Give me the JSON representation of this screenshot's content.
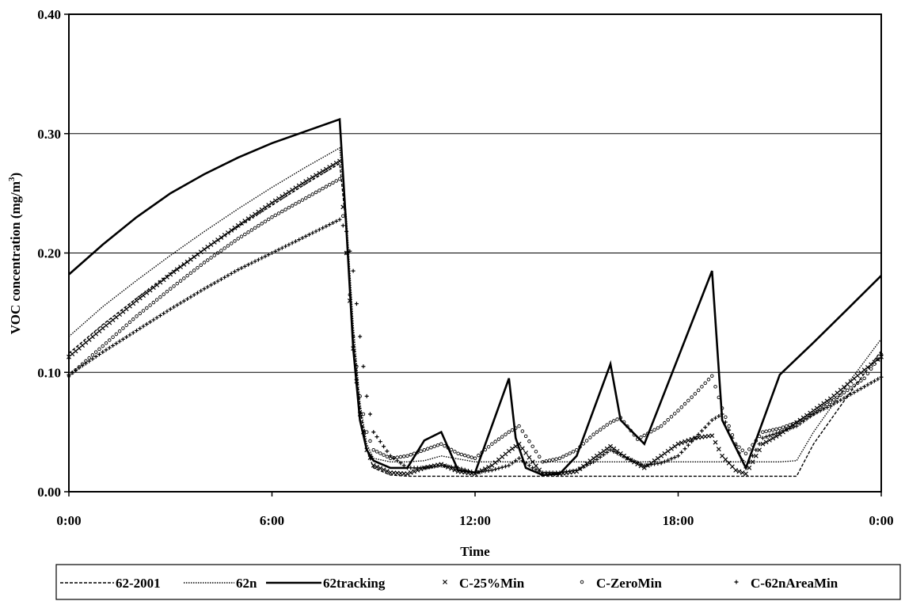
{
  "chart_data": {
    "type": "line",
    "title": "",
    "xlabel": "Time",
    "ylabel": "VOC concentration (mg/m",
    "ylabel_sup": "3",
    "ylabel_end": ")",
    "x_unit": "hours",
    "xlim": [
      0,
      24
    ],
    "ylim": [
      0,
      0.4
    ],
    "xticks": [
      {
        "value": 0,
        "label": "0:00"
      },
      {
        "value": 6,
        "label": "6:00"
      },
      {
        "value": 12,
        "label": "12:00"
      },
      {
        "value": 18,
        "label": "18:00"
      },
      {
        "value": 24,
        "label": "0:00"
      }
    ],
    "yticks": [
      {
        "value": 0,
        "label": "0.00"
      },
      {
        "value": 0.1,
        "label": "0.10"
      },
      {
        "value": 0.2,
        "label": "0.20"
      },
      {
        "value": 0.3,
        "label": "0.30"
      },
      {
        "value": 0.4,
        "label": "0.40"
      }
    ],
    "grid": "horizontal",
    "legend_position": "bottom",
    "series": [
      {
        "name": "62-2001",
        "style": "dash",
        "x": [
          0,
          1,
          2,
          3,
          4,
          5,
          6,
          7,
          8,
          8.2,
          8.4,
          8.6,
          8.8,
          9,
          9.5,
          10,
          11,
          12,
          13,
          14,
          15,
          16,
          17,
          18,
          19,
          20,
          21,
          21.5,
          22,
          23,
          24
        ],
        "y": [
          0.116,
          0.14,
          0.162,
          0.183,
          0.203,
          0.222,
          0.24,
          0.258,
          0.275,
          0.22,
          0.13,
          0.07,
          0.035,
          0.02,
          0.014,
          0.013,
          0.013,
          0.013,
          0.013,
          0.013,
          0.013,
          0.013,
          0.013,
          0.013,
          0.013,
          0.013,
          0.013,
          0.013,
          0.04,
          0.08,
          0.118
        ]
      },
      {
        "name": "62n",
        "style": "dot",
        "x": [
          0,
          1,
          2,
          3,
          4,
          5,
          6,
          7,
          8,
          8.2,
          8.4,
          8.6,
          8.8,
          9,
          9.5,
          10,
          10.5,
          11,
          12,
          13,
          14,
          15,
          16,
          17,
          18,
          19,
          20,
          21,
          21.5,
          22,
          23,
          24
        ],
        "y": [
          0.13,
          0.155,
          0.177,
          0.198,
          0.218,
          0.237,
          0.255,
          0.272,
          0.288,
          0.23,
          0.14,
          0.075,
          0.04,
          0.028,
          0.025,
          0.025,
          0.026,
          0.03,
          0.025,
          0.025,
          0.025,
          0.025,
          0.025,
          0.025,
          0.025,
          0.025,
          0.025,
          0.025,
          0.026,
          0.05,
          0.09,
          0.128
        ]
      },
      {
        "name": "62tracking",
        "style": "solid-thick",
        "x": [
          0,
          1,
          2,
          3,
          4,
          5,
          6,
          7,
          8,
          8.2,
          8.4,
          8.6,
          8.8,
          9,
          9.5,
          10,
          10.5,
          11,
          11.5,
          12,
          13,
          13.2,
          13.5,
          14,
          14.5,
          15,
          16,
          16.3,
          17,
          19,
          19.3,
          20,
          21,
          22,
          23,
          24
        ],
        "y": [
          0.182,
          0.207,
          0.23,
          0.25,
          0.266,
          0.28,
          0.292,
          0.302,
          0.312,
          0.22,
          0.12,
          0.06,
          0.035,
          0.026,
          0.02,
          0.02,
          0.043,
          0.05,
          0.018,
          0.016,
          0.095,
          0.045,
          0.02,
          0.014,
          0.015,
          0.03,
          0.107,
          0.06,
          0.04,
          0.185,
          0.06,
          0.02,
          0.098,
          0.125,
          0.153,
          0.181
        ]
      },
      {
        "name": "C-25%Min",
        "style": "marker-x",
        "x": [
          0,
          1,
          2,
          3,
          4,
          5,
          6,
          7,
          8,
          8.2,
          8.4,
          8.6,
          8.8,
          9,
          9.5,
          10,
          10.5,
          11,
          11.5,
          12,
          12.5,
          13,
          13.3,
          13.7,
          14,
          14.5,
          15,
          15.5,
          16,
          16.5,
          17,
          17.5,
          18,
          18.5,
          19,
          19.3,
          19.7,
          20,
          20.5,
          21,
          21.5,
          22,
          22.5,
          23,
          23.5,
          24
        ],
        "y": [
          0.113,
          0.137,
          0.16,
          0.182,
          0.203,
          0.223,
          0.242,
          0.26,
          0.277,
          0.2,
          0.12,
          0.065,
          0.035,
          0.022,
          0.016,
          0.015,
          0.02,
          0.023,
          0.017,
          0.015,
          0.022,
          0.034,
          0.04,
          0.025,
          0.015,
          0.015,
          0.017,
          0.028,
          0.038,
          0.028,
          0.02,
          0.03,
          0.04,
          0.045,
          0.047,
          0.03,
          0.018,
          0.015,
          0.04,
          0.048,
          0.058,
          0.068,
          0.078,
          0.09,
          0.102,
          0.113
        ]
      },
      {
        "name": "C-ZeroMin",
        "style": "marker-circle",
        "x": [
          0,
          1,
          2,
          3,
          4,
          5,
          6,
          7,
          8,
          8.2,
          8.4,
          8.6,
          8.8,
          9,
          9.5,
          10,
          10.5,
          11,
          11.5,
          12,
          12.5,
          13,
          13.3,
          13.7,
          14,
          14.5,
          15,
          15.5,
          16,
          16.3,
          16.8,
          17.5,
          18,
          18.5,
          19,
          19.3,
          19.7,
          20,
          20.5,
          21,
          21.5,
          22,
          22.5,
          23,
          23.5,
          24
        ],
        "y": [
          0.097,
          0.122,
          0.147,
          0.17,
          0.192,
          0.212,
          0.23,
          0.246,
          0.262,
          0.2,
          0.13,
          0.08,
          0.05,
          0.035,
          0.028,
          0.03,
          0.035,
          0.04,
          0.032,
          0.028,
          0.04,
          0.05,
          0.055,
          0.038,
          0.025,
          0.028,
          0.035,
          0.048,
          0.058,
          0.062,
          0.044,
          0.055,
          0.068,
          0.082,
          0.097,
          0.07,
          0.04,
          0.032,
          0.05,
          0.053,
          0.058,
          0.065,
          0.075,
          0.085,
          0.095,
          0.115
        ]
      },
      {
        "name": "C-62nAreaMin",
        "style": "marker-plus",
        "x": [
          0,
          1,
          2,
          3,
          4,
          5,
          6,
          7,
          8,
          8.2,
          8.4,
          8.6,
          8.8,
          9,
          9.5,
          10,
          10.5,
          11,
          11.5,
          12,
          12.5,
          13,
          13.3,
          13.7,
          14,
          14.5,
          15,
          15.5,
          16,
          16.5,
          17,
          17.5,
          18,
          18.5,
          19,
          19.3,
          19.6,
          20,
          20.5,
          21,
          21.5,
          22,
          22.5,
          23,
          23.5,
          24
        ],
        "y": [
          0.098,
          0.117,
          0.135,
          0.153,
          0.17,
          0.186,
          0.2,
          0.214,
          0.228,
          0.218,
          0.185,
          0.13,
          0.08,
          0.05,
          0.03,
          0.02,
          0.02,
          0.022,
          0.02,
          0.016,
          0.018,
          0.022,
          0.028,
          0.02,
          0.016,
          0.016,
          0.018,
          0.025,
          0.035,
          0.028,
          0.022,
          0.024,
          0.03,
          0.045,
          0.06,
          0.065,
          0.045,
          0.02,
          0.045,
          0.05,
          0.055,
          0.065,
          0.072,
          0.08,
          0.088,
          0.096
        ]
      }
    ]
  }
}
